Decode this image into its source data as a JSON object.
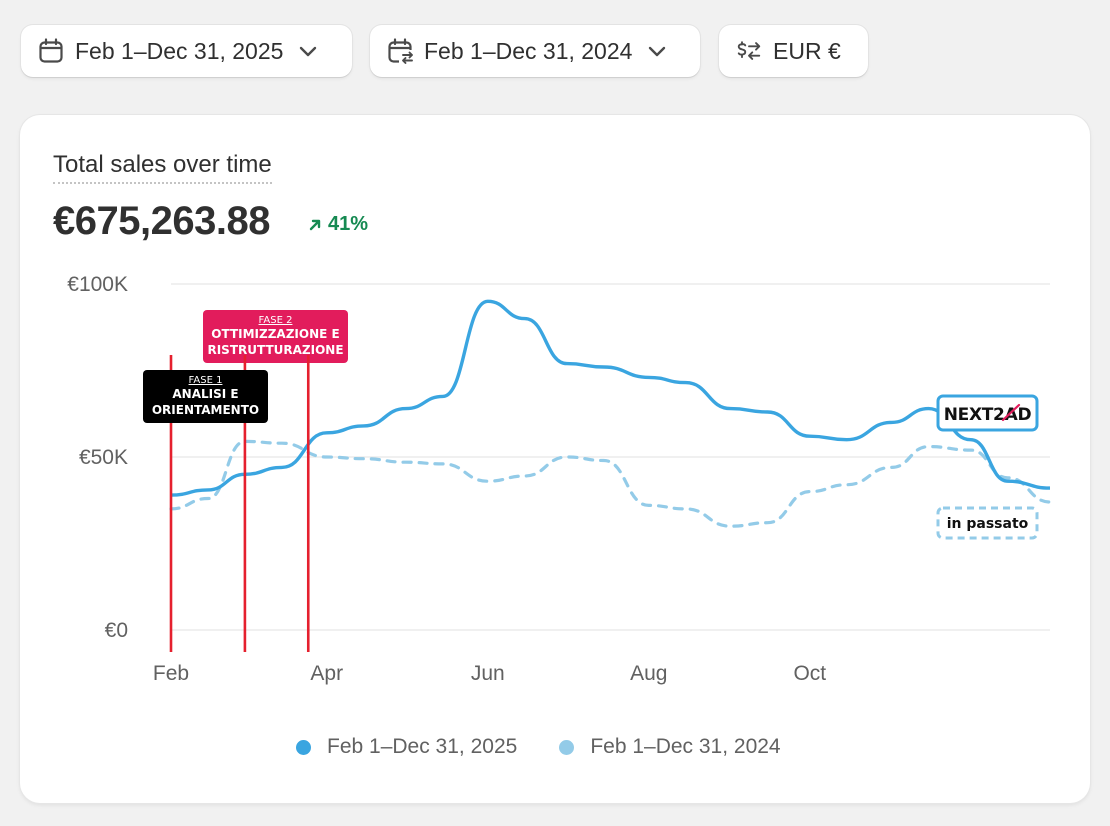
{
  "toolbar": {
    "date_range_label": "Feb 1–Dec 31, 2025",
    "compare_range_label": "Feb 1–Dec 31, 2024",
    "currency_label": "EUR €"
  },
  "card": {
    "title": "Total sales over time",
    "total": "€675,263.88",
    "delta": "41%"
  },
  "legend": {
    "current": "Feb 1–Dec 31, 2025",
    "previous": "Feb 1–Dec 31, 2024"
  },
  "colors": {
    "current_line": "#3aa5e0",
    "previous_line": "#93cbe8",
    "phase_line": "#e5202e",
    "phase2_fill": "#e21c5c",
    "phase1_fill": "#000000",
    "positive": "#168a52"
  },
  "chart_data": {
    "type": "line",
    "x": [
      "Feb 1",
      "Feb 15",
      "Mar 1",
      "Mar 15",
      "Apr 1",
      "Apr 15",
      "May 1",
      "May 15",
      "Jun 1",
      "Jun 15",
      "Jul 1",
      "Jul 15",
      "Aug 1",
      "Aug 15",
      "Sep 1",
      "Sep 15",
      "Oct 1",
      "Oct 15",
      "Nov 1",
      "Nov 15",
      "Dec 1",
      "Dec 15",
      "Dec 31"
    ],
    "xticks": [
      "Feb",
      "Apr",
      "Jun",
      "Aug",
      "Oct"
    ],
    "xtick_positions": [
      "Feb 1",
      "Apr 1",
      "Jun 1",
      "Aug 1",
      "Oct 1"
    ],
    "yticks": [
      "€0",
      "€50K",
      "€100K"
    ],
    "ytick_values": [
      0,
      50000,
      100000
    ],
    "ylim": [
      0,
      100000
    ],
    "grid": true,
    "series": [
      {
        "name": "Feb 1–Dec 31, 2025",
        "values": [
          39000,
          40500,
          45000,
          47000,
          57000,
          59000,
          64000,
          67500,
          95000,
          90000,
          77000,
          76000,
          73000,
          71500,
          64000,
          63000,
          56000,
          55000,
          60000,
          64000,
          55000,
          43000,
          41000
        ]
      },
      {
        "name": "Feb 1–Dec 31, 2024",
        "values": [
          35000,
          38000,
          54500,
          54000,
          50000,
          49500,
          48500,
          48000,
          43000,
          44500,
          50000,
          49000,
          36000,
          35000,
          30000,
          31000,
          40000,
          42000,
          47000,
          53000,
          52000,
          44000,
          37000
        ]
      }
    ],
    "annotations": [
      {
        "type": "vline",
        "x": "Feb 1",
        "label_top": "FASE 1",
        "label": "ANALISI E ORIENTAMENTO",
        "label_line1": "ANALISI E",
        "label_line2": "ORIENTAMENTO"
      },
      {
        "type": "vline",
        "x": "Mar 1"
      },
      {
        "type": "vline",
        "x": "Mar 25",
        "label_top": "FASE 2",
        "label": "OTTIMIZZAZIONE E RISTRUTTURAZIONE",
        "label_line1": "OTTIMIZZAZIONE E",
        "label_line2": "RISTRUTTURAZIONE"
      },
      {
        "type": "badge",
        "series": "Feb 1–Dec 31, 2025",
        "text": "NEXT2AD"
      },
      {
        "type": "badge",
        "series": "Feb 1–Dec 31, 2024",
        "text": "in passato"
      }
    ]
  }
}
